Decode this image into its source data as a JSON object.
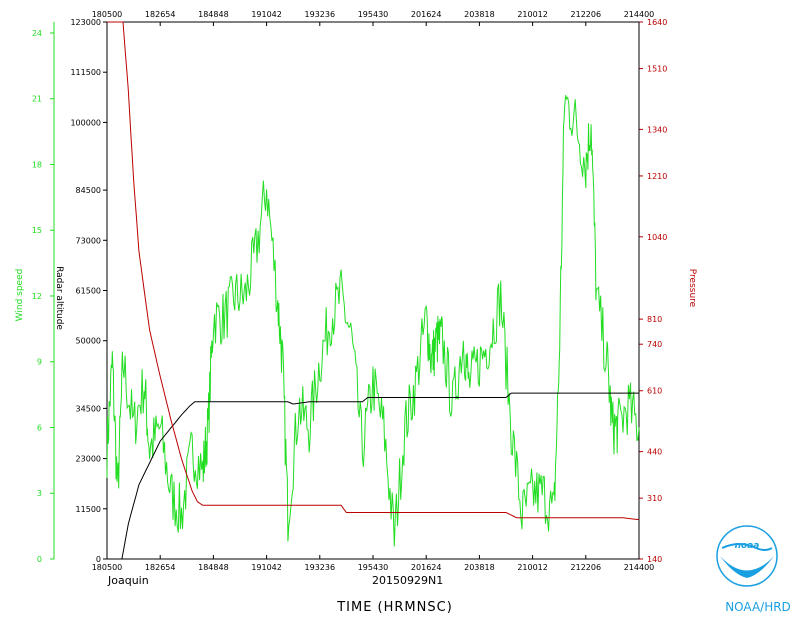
{
  "chart_data": {
    "type": "line",
    "title": "",
    "storm_name": "Joaquin",
    "storm_id": "20150929N1",
    "xlabel": "TIME (HRMNSC)",
    "credit": "NOAA/HRD",
    "logo_text": "noaa",
    "x_ticks": [
      "180500",
      "182654",
      "184848",
      "191042",
      "193236",
      "195430",
      "201624",
      "203818",
      "210012",
      "212206",
      "214400"
    ],
    "axes": {
      "wind": {
        "label": "Wind speed",
        "color": "#22dd22",
        "ylim": [
          0,
          24.5
        ],
        "ticks": [
          0,
          3,
          6,
          9,
          12,
          15,
          18,
          21,
          24
        ]
      },
      "alt": {
        "label": "Radar altitude",
        "color": "#000000",
        "ylim": [
          0,
          123000
        ],
        "ticks": [
          0,
          11500,
          23000,
          34500,
          50000,
          61500,
          73000,
          84500,
          100000,
          111500,
          123000
        ]
      },
      "pres": {
        "label": "Pressure",
        "color": "#bb0000",
        "ylim": [
          140,
          1640
        ],
        "ticks": [
          140,
          310,
          440,
          610,
          740,
          810,
          1040,
          1210,
          1340,
          1510,
          1640
        ]
      }
    },
    "series": [
      {
        "name": "Wind speed",
        "axis": "wind",
        "color": "#22dd22",
        "noise": 1.3,
        "x": [
          0,
          0.01,
          0.02,
          0.03,
          0.05,
          0.07,
          0.08,
          0.1,
          0.12,
          0.14,
          0.16,
          0.18,
          0.19,
          0.2,
          0.22,
          0.24,
          0.26,
          0.28,
          0.3,
          0.32,
          0.33,
          0.34,
          0.36,
          0.38,
          0.4,
          0.42,
          0.44,
          0.46,
          0.48,
          0.5,
          0.52,
          0.54,
          0.56,
          0.58,
          0.6,
          0.61,
          0.62,
          0.63,
          0.65,
          0.67,
          0.68,
          0.7,
          0.72,
          0.74,
          0.76,
          0.78,
          0.8,
          0.82,
          0.84,
          0.85,
          0.86,
          0.88,
          0.9,
          0.91,
          0.92,
          0.94,
          0.95,
          0.96,
          0.98,
          1.0
        ],
        "y": [
          5,
          9,
          3,
          9,
          6,
          8,
          5,
          6,
          3,
          2,
          5,
          4,
          6,
          11,
          11,
          12,
          12,
          14,
          17,
          12,
          9,
          2,
          7,
          6,
          9,
          11,
          12,
          10,
          5,
          8,
          6,
          1,
          6,
          8,
          11,
          9,
          10,
          10,
          7,
          10,
          8,
          9,
          10,
          12,
          6,
          2,
          3,
          3,
          2,
          9,
          21,
          20,
          18,
          20,
          12,
          9,
          6,
          6,
          7,
          6
        ]
      },
      {
        "name": "Radar altitude",
        "axis": "alt",
        "color": "#000000",
        "noise": 0,
        "x": [
          0.028,
          0.04,
          0.06,
          0.08,
          0.1,
          0.12,
          0.14,
          0.155,
          0.165,
          0.2,
          0.3,
          0.34,
          0.35,
          0.38,
          0.4,
          0.48,
          0.49,
          0.52,
          0.55,
          0.6,
          0.7,
          0.75,
          0.76,
          0.85,
          0.86,
          0.95,
          1.0
        ],
        "y": [
          0,
          8000,
          17000,
          22000,
          27000,
          30000,
          33000,
          35000,
          36000,
          36000,
          36000,
          36000,
          35500,
          36000,
          36000,
          36000,
          37000,
          37000,
          37000,
          37000,
          37000,
          37000,
          38000,
          38000,
          38000,
          38000,
          38000
        ]
      },
      {
        "name": "Pressure",
        "axis": "pres",
        "color": "#bb0000",
        "noise": 0,
        "x": [
          0,
          0.03,
          0.04,
          0.05,
          0.06,
          0.08,
          0.1,
          0.12,
          0.14,
          0.16,
          0.17,
          0.18,
          0.2,
          0.3,
          0.4,
          0.44,
          0.45,
          0.5,
          0.6,
          0.66,
          0.67,
          0.75,
          0.77,
          0.8,
          0.9,
          0.95,
          0.97,
          1.0
        ],
        "y": [
          1640,
          1640,
          1450,
          1200,
          1000,
          780,
          650,
          530,
          420,
          330,
          300,
          290,
          290,
          290,
          290,
          290,
          270,
          270,
          270,
          270,
          270,
          270,
          255,
          255,
          255,
          255,
          255,
          250
        ]
      }
    ]
  }
}
